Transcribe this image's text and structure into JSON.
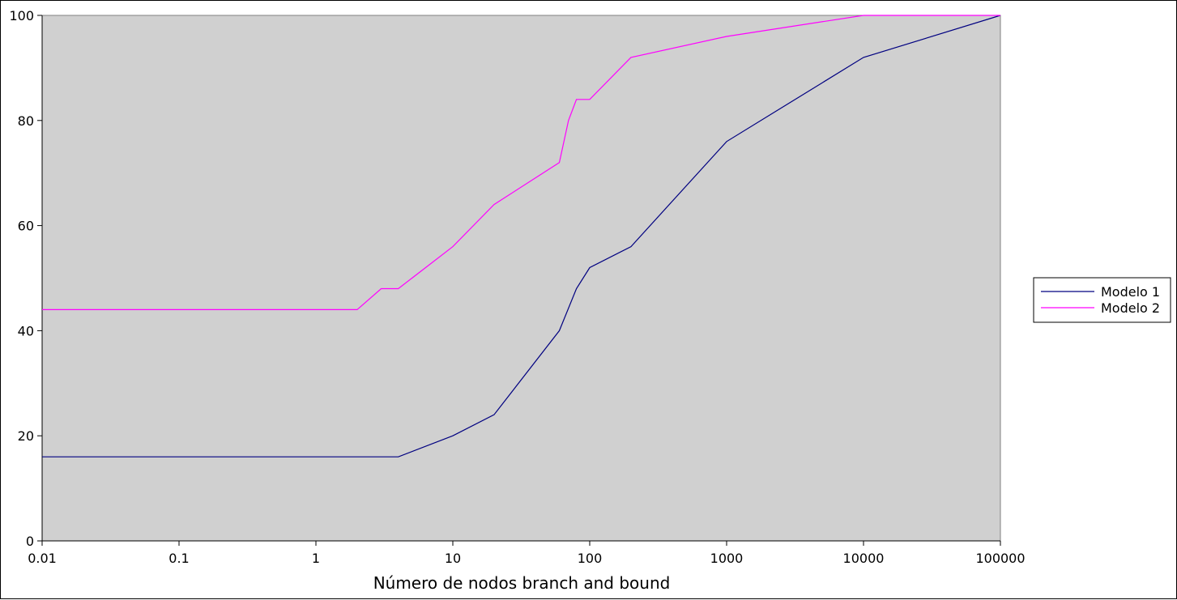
{
  "chart_data": {
    "type": "line",
    "title": "",
    "xlabel": "Número de nodos branch and bound",
    "ylabel": "",
    "x_scale": "log",
    "xlim": [
      0.01,
      100000
    ],
    "ylim": [
      0,
      100
    ],
    "x_ticks": [
      "0.01",
      "0.1",
      "1",
      "10",
      "100",
      "1000",
      "10000",
      "100000"
    ],
    "y_ticks": [
      "0",
      "20",
      "40",
      "60",
      "80",
      "100"
    ],
    "grid": false,
    "plot_background": "#d0d0d0",
    "legend_position": "right",
    "series": [
      {
        "name": "Modelo 1",
        "color": "#000080",
        "points": [
          [
            0.01,
            16
          ],
          [
            4,
            16
          ],
          [
            10,
            20
          ],
          [
            20,
            24
          ],
          [
            60,
            40
          ],
          [
            80,
            48
          ],
          [
            100,
            52
          ],
          [
            200,
            56
          ],
          [
            1000,
            76
          ],
          [
            10000,
            92
          ],
          [
            100000,
            100
          ]
        ]
      },
      {
        "name": "Modelo 2",
        "color": "#ff00ff",
        "points": [
          [
            0.01,
            44
          ],
          [
            2,
            44
          ],
          [
            3,
            48
          ],
          [
            4,
            48
          ],
          [
            10,
            56
          ],
          [
            20,
            64
          ],
          [
            60,
            72
          ],
          [
            70,
            80
          ],
          [
            80,
            84
          ],
          [
            100,
            84
          ],
          [
            200,
            92
          ],
          [
            1000,
            96
          ],
          [
            10000,
            100
          ],
          [
            100000,
            100
          ]
        ]
      }
    ]
  }
}
